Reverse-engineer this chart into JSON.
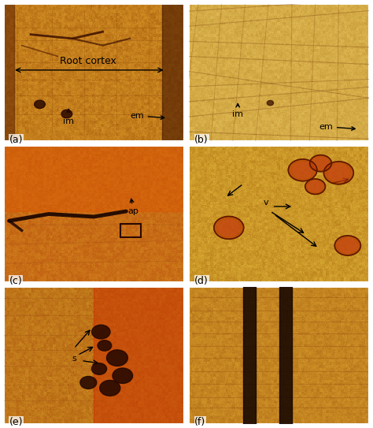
{
  "panels": [
    "a",
    "b",
    "c",
    "d",
    "e",
    "f"
  ],
  "nrows": 3,
  "ncols": 2,
  "figsize": [
    4.74,
    5.43
  ],
  "dpi": 100,
  "panel_colors": {
    "a": {
      "base": [
        200,
        120,
        20
      ],
      "dark": [
        80,
        30,
        5
      ],
      "light": [
        230,
        180,
        60
      ]
    },
    "b": {
      "base": [
        210,
        160,
        50
      ],
      "dark": [
        100,
        60,
        10
      ],
      "light": [
        240,
        210,
        120
      ]
    },
    "c": {
      "base": [
        200,
        100,
        20
      ],
      "dark": [
        150,
        50,
        5
      ],
      "light": [
        220,
        160,
        40
      ]
    },
    "d": {
      "base": [
        210,
        150,
        30
      ],
      "dark": [
        90,
        40,
        10
      ],
      "light": [
        230,
        200,
        80
      ]
    },
    "e": {
      "base": [
        190,
        110,
        20
      ],
      "dark": [
        130,
        40,
        5
      ],
      "light": [
        220,
        170,
        50
      ]
    },
    "f": {
      "base": [
        200,
        130,
        30
      ],
      "dark": [
        100,
        50,
        5
      ],
      "light": [
        225,
        175,
        55
      ]
    }
  },
  "font_size": 8,
  "label_font_size": 9
}
